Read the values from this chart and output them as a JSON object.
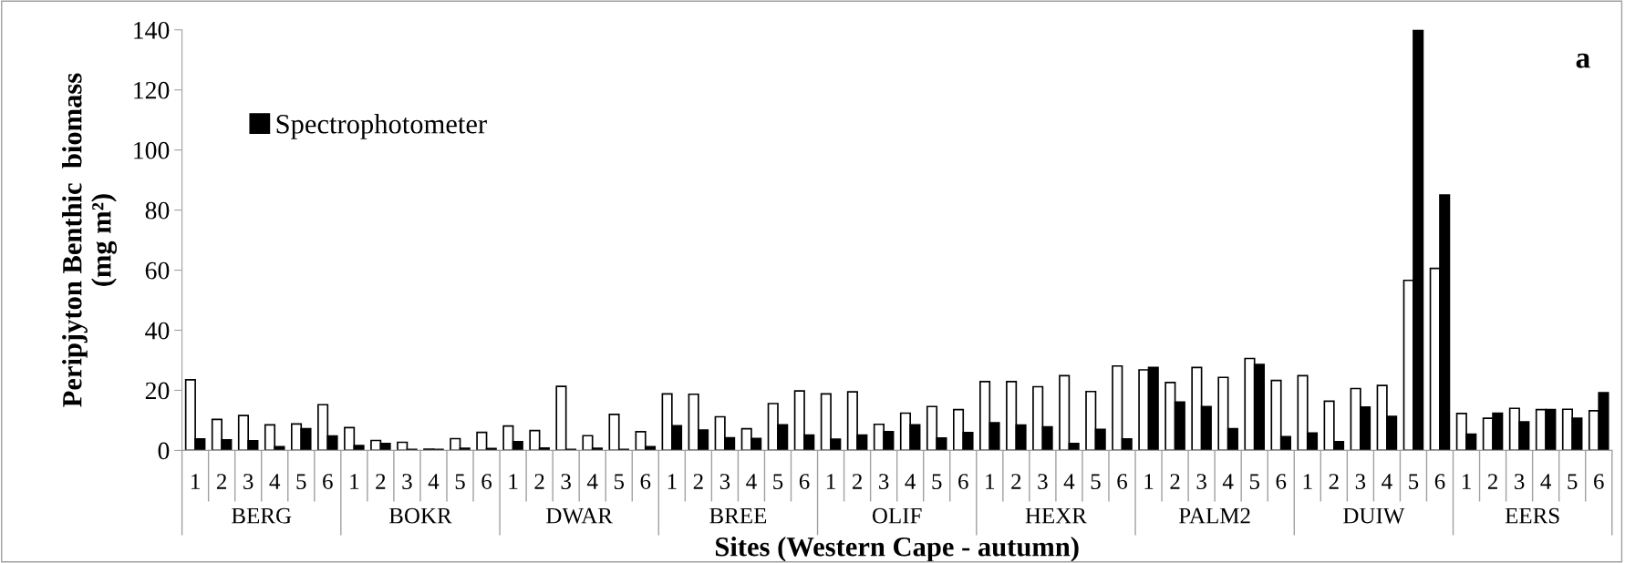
{
  "chart_data": {
    "type": "bar",
    "title": "a",
    "xlabel": "Sites (Western Cape - autumn)",
    "ylabel": "Peripjyton Benthic  biomass\n(mg m²)",
    "categories": [
      "1",
      "2",
      "3",
      "4",
      "5",
      "6",
      "1",
      "2",
      "3",
      "4",
      "5",
      "6",
      "1",
      "2",
      "3",
      "4",
      "5",
      "6",
      "1",
      "2",
      "3",
      "4",
      "5",
      "6",
      "1",
      "2",
      "3",
      "4",
      "5",
      "6",
      "1",
      "2",
      "3",
      "4",
      "5",
      "6",
      "1",
      "2",
      "3",
      "4",
      "5",
      "6",
      "1",
      "2",
      "3",
      "4",
      "5",
      "6",
      "1",
      "2",
      "3",
      "4",
      "5",
      "6"
    ],
    "annotations": [
      "BERG",
      "BOKR",
      "DWAR",
      "BREE",
      "OLIF",
      "HEXR",
      "PALM2",
      "DUIW",
      "EERS"
    ],
    "series": [
      {
        "color": "#ffffff",
        "values": [
          23.5,
          10.3,
          11.6,
          8.5,
          8.8,
          15.2,
          7.6,
          3.3,
          2.7,
          0.4,
          3.9,
          6.0,
          8.1,
          6.6,
          21.3,
          4.9,
          12.0,
          6.2,
          18.8,
          18.7,
          11.2,
          7.2,
          15.6,
          19.8,
          18.8,
          19.5,
          8.7,
          12.4,
          14.6,
          13.6,
          22.9,
          22.9,
          21.2,
          24.9,
          19.6,
          28.1,
          26.8,
          22.6,
          27.6,
          24.3,
          30.6,
          23.3,
          24.9,
          16.4,
          20.6,
          21.6,
          56.6,
          60.6,
          12.3,
          10.7,
          14.0,
          13.6,
          13.7,
          13.2
        ]
      },
      {
        "name": "Spectrophotometer",
        "color": "#000000",
        "values": [
          3.8,
          3.5,
          3.2,
          1.2,
          7.2,
          4.8,
          1.6,
          2.3,
          0.3,
          0.3,
          0.7,
          0.6,
          2.9,
          0.8,
          0.3,
          0.7,
          0.3,
          1.2,
          8.2,
          6.8,
          4.2,
          4.0,
          8.5,
          5.1,
          3.7,
          5.1,
          6.2,
          8.5,
          4.1,
          5.9,
          9.2,
          8.4,
          7.8,
          2.3,
          7.0,
          3.8,
          27.6,
          16.1,
          14.6,
          7.2,
          28.6,
          4.6,
          5.8,
          2.9,
          14.4,
          11.3,
          140,
          85,
          5.4,
          12.4,
          9.5,
          13.6,
          10.7,
          19.2
        ]
      }
    ],
    "ylim": [
      0,
      140
    ],
    "yticks": [
      0,
      20,
      40,
      60,
      80,
      100,
      120,
      140
    ],
    "grid": false,
    "legend": "top left"
  }
}
